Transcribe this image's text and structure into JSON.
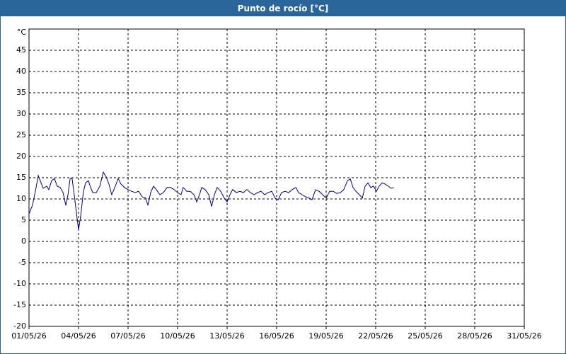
{
  "chart_data": {
    "type": "line",
    "title": "Punto de rocío [°C]",
    "y_label": "°C",
    "xlim": [
      1,
      31
    ],
    "xticks": [
      {
        "value": 1,
        "label": "01/05/26"
      },
      {
        "value": 4,
        "label": "04/05/26"
      },
      {
        "value": 7,
        "label": "07/05/26"
      },
      {
        "value": 10,
        "label": "10/05/26"
      },
      {
        "value": 13,
        "label": "13/05/26"
      },
      {
        "value": 16,
        "label": "16/05/26"
      },
      {
        "value": 19,
        "label": "19/05/26"
      },
      {
        "value": 22,
        "label": "22/05/26"
      },
      {
        "value": 25,
        "label": "25/05/26"
      },
      {
        "value": 28,
        "label": "28/05/26"
      },
      {
        "value": 31,
        "label": "31/05/26"
      }
    ],
    "ylim": [
      -20,
      50
    ],
    "yticks": [
      -20,
      -15,
      -10,
      -5,
      0,
      5,
      10,
      15,
      20,
      25,
      30,
      35,
      40,
      45
    ],
    "grid": true,
    "series": [
      {
        "color": "#00008b",
        "x": [
          1,
          1.21,
          1.43,
          1.56,
          1.73,
          1.86,
          2.07,
          2.2,
          2.37,
          2.54,
          2.71,
          2.89,
          3.06,
          3.23,
          3.36,
          3.49,
          3.61,
          3.74,
          3.87,
          4,
          4.13,
          4.3,
          4.43,
          4.6,
          4.73,
          4.86,
          5.07,
          5.29,
          5.5,
          5.67,
          5.84,
          6.01,
          6.23,
          6.4,
          6.57,
          6.79,
          7,
          7.21,
          7.43,
          7.64,
          7.86,
          8.07,
          8.2,
          8.37,
          8.54,
          8.71,
          8.93,
          9.14,
          9.36,
          9.57,
          9.79,
          10,
          10.21,
          10.34,
          10.56,
          10.77,
          10.99,
          11.16,
          11.33,
          11.46,
          11.67,
          11.89,
          12.06,
          12.23,
          12.4,
          12.61,
          12.83,
          13,
          13.17,
          13.34,
          13.56,
          13.77,
          13.99,
          14.2,
          14.41,
          14.63,
          14.84,
          15.06,
          15.27,
          15.49,
          15.7,
          15.91,
          16.09,
          16.3,
          16.51,
          16.73,
          16.94,
          17.16,
          17.33,
          17.54,
          17.76,
          17.97,
          18.14,
          18.36,
          18.57,
          18.79,
          19,
          19.21,
          19.43,
          19.64,
          19.86,
          20.07,
          20.29,
          20.46,
          20.63,
          20.8,
          21.01,
          21.19,
          21.36,
          21.53,
          21.7,
          21.87,
          22.04,
          22.21,
          22.39,
          22.56,
          22.77,
          22.94,
          23.11
        ],
        "values": [
          6.5,
          8.5,
          12.7,
          15.5,
          13.8,
          12.5,
          13,
          12.2,
          14.3,
          14.8,
          13,
          12.7,
          11.5,
          8.5,
          11,
          14.8,
          14.8,
          11,
          6.8,
          2.7,
          6,
          11.8,
          13.8,
          14.3,
          12.7,
          11.5,
          11.5,
          13,
          16.3,
          15.2,
          13.5,
          11,
          13,
          14.8,
          13.5,
          12.7,
          12.2,
          11.8,
          11.5,
          11.8,
          10.5,
          10.2,
          8.5,
          11.5,
          13,
          12.2,
          11,
          11.5,
          12.7,
          12.7,
          12.2,
          11.5,
          11,
          12.7,
          11.8,
          11.8,
          11,
          9.3,
          11,
          12.7,
          12.2,
          11,
          8.2,
          11,
          12.7,
          11.8,
          10.2,
          9.3,
          11,
          12.2,
          11.5,
          11.8,
          11.5,
          12.2,
          11.5,
          11,
          11.5,
          11.8,
          11,
          11.5,
          11.8,
          10.2,
          9.8,
          11.5,
          11.8,
          11.5,
          12.2,
          12.7,
          11.5,
          11,
          10.5,
          10.2,
          9.8,
          12.2,
          11.8,
          11,
          10.2,
          11.8,
          11.8,
          11.3,
          11.5,
          12.2,
          14.3,
          14.7,
          12.7,
          11.8,
          11,
          10.2,
          13,
          13.8,
          12.7,
          13,
          11.8,
          13,
          13.8,
          13.5,
          13,
          12.5,
          12.7
        ]
      }
    ]
  }
}
